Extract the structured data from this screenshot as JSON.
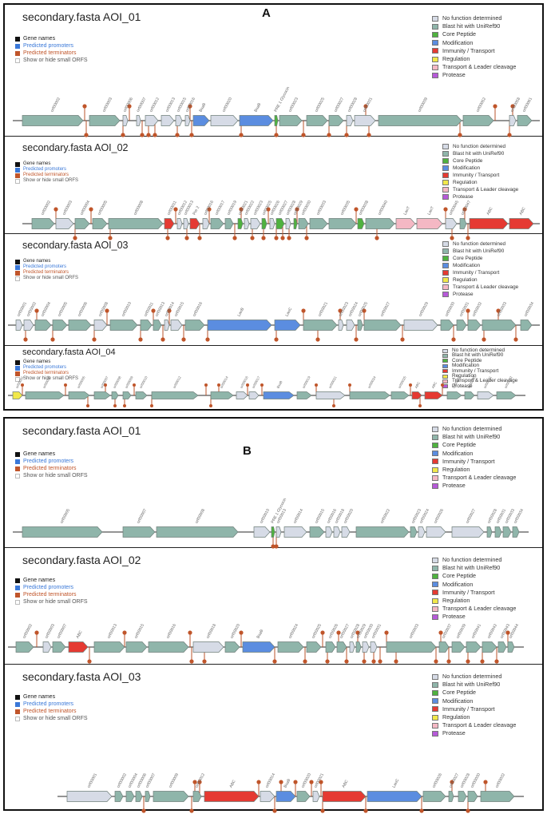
{
  "figure_a_label": "A",
  "figure_b_label": "B",
  "legend_left": [
    {
      "label": "Gene names",
      "color": "#111111"
    },
    {
      "label": "Predicted promoters",
      "color": "#3a78d8"
    },
    {
      "label": "Predicted terminators",
      "color": "#c0552a"
    },
    {
      "label": "Show or hide small ORFS",
      "color": "#ffffff"
    }
  ],
  "legend_right": [
    {
      "label": "No function determined",
      "color": "#d6dbe6"
    },
    {
      "label": "Blast hit with UniRef90",
      "color": "#8fb5aa"
    },
    {
      "label": "Core Peptide",
      "color": "#4fb23f"
    },
    {
      "label": "Modification",
      "color": "#5b8de0"
    },
    {
      "label": "Immunity / Transport",
      "color": "#e53a32"
    },
    {
      "label": "Regulation",
      "color": "#f1e84a"
    },
    {
      "label": "Transport & Leader cleavage",
      "color": "#f4b8c4"
    },
    {
      "label": "Protease",
      "color": "#b65ad8"
    }
  ],
  "panels": [
    {
      "id": "A1",
      "title": "secondary.fasta AOI_01"
    },
    {
      "id": "A2",
      "title": "secondary.fasta AOI_02"
    },
    {
      "id": "A3",
      "title": "secondary.fasta AOI_03"
    },
    {
      "id": "A4",
      "title": "secondary.fasta AOI_04"
    },
    {
      "id": "B1",
      "title": "secondary.fasta AOI_01"
    },
    {
      "id": "B2",
      "title": "secondary.fasta AOI_02"
    },
    {
      "id": "B3",
      "title": "secondary.fasta AOI_03"
    }
  ]
}
